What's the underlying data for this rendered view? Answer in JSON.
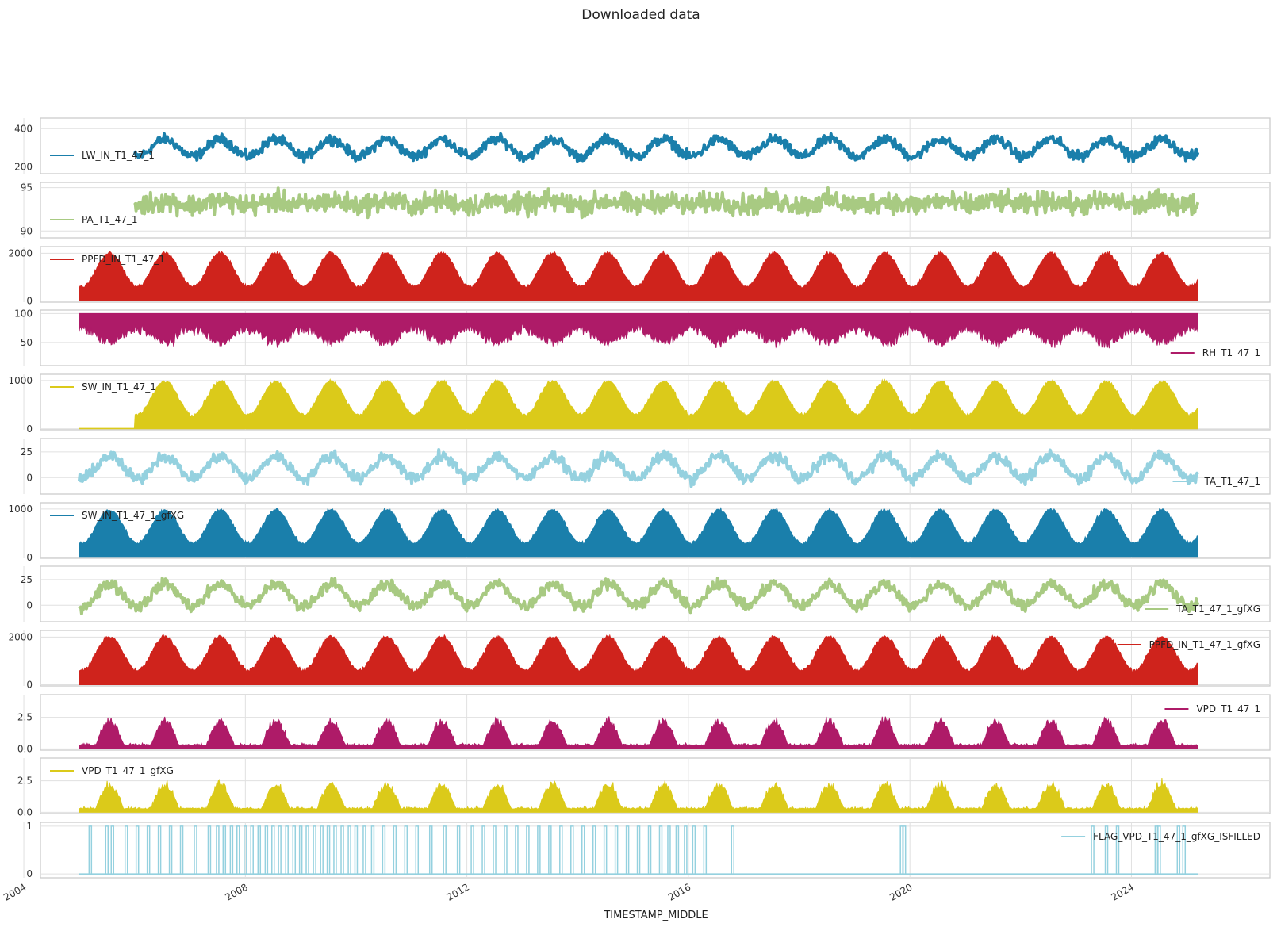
{
  "title": "Downloaded data",
  "chart_data": {
    "type": "line",
    "title": "Downloaded data",
    "xlabel": "TIMESTAMP_MIDDLE",
    "x_ticks": [
      "2004",
      "2008",
      "2012",
      "2016",
      "2020",
      "2024"
    ],
    "x_range": [
      2004.3,
      2026.5
    ],
    "grid": true,
    "panels": [
      {
        "series": "LW_IN_T1_47_1",
        "color": "#1a7fab",
        "start": 2006.0,
        "end": 2025.2,
        "ylim": [
          165,
          455
        ],
        "yticks": [
          200,
          400
        ],
        "mean": 300,
        "amp": 45,
        "noise": 38,
        "legend": "center-left",
        "kind": "line"
      },
      {
        "series": "PA_T1_47_1",
        "color": "#a8ca82",
        "start": 2006.0,
        "end": 2025.2,
        "ylim": [
          89.2,
          95.6
        ],
        "yticks": [
          90,
          95
        ],
        "mean": 93.2,
        "amp": 0.25,
        "noise": 1.8,
        "legend": "center-left",
        "kind": "line"
      },
      {
        "series": "PPFD_IN_T1_47_1",
        "color": "#cf231c",
        "start": 2005.0,
        "end": 2025.2,
        "ylim": [
          -50,
          2280
        ],
        "yticks": [
          0,
          2000
        ],
        "min": 0,
        "max": 2150,
        "legend": "upper-left",
        "kind": "season"
      },
      {
        "series": "RH_T1_47_1",
        "color": "#ae1b68",
        "start": 2005.0,
        "end": 2025.2,
        "ylim": [
          10,
          106
        ],
        "yticks": [
          50,
          100
        ],
        "legend": "lower-right",
        "kind": "rh"
      },
      {
        "series": "SW_IN_T1_47_1",
        "color": "#dbca1a",
        "start": 2005.0,
        "end": 2025.2,
        "ylim": [
          -20,
          1130
        ],
        "yticks": [
          0,
          1000
        ],
        "min": 0,
        "max": 1050,
        "legend": "upper-left",
        "kind": "sw"
      },
      {
        "series": "TA_T1_47_1",
        "color": "#95d1df",
        "start": 2005.0,
        "end": 2025.2,
        "ylim": [
          -16,
          38
        ],
        "yticks": [
          0,
          25
        ],
        "mean": 10,
        "amp": 11,
        "noise": 8,
        "legend": "lower-right",
        "kind": "line"
      },
      {
        "series": "SW_IN_T1_47_1_gfXG",
        "color": "#1a7fab",
        "start": 2005.0,
        "end": 2025.2,
        "ylim": [
          -20,
          1130
        ],
        "yticks": [
          0,
          1000
        ],
        "min": 0,
        "max": 1050,
        "legend": "upper-left",
        "kind": "season"
      },
      {
        "series": "TA_T1_47_1_gfXG",
        "color": "#a8ca82",
        "start": 2005.0,
        "end": 2025.2,
        "ylim": [
          -16,
          38
        ],
        "yticks": [
          0,
          25
        ],
        "mean": 10,
        "amp": 11,
        "noise": 8,
        "legend": "lower-right",
        "kind": "line"
      },
      {
        "series": "PPFD_IN_T1_47_1_gfXG",
        "color": "#cf231c",
        "start": 2005.0,
        "end": 2025.2,
        "ylim": [
          -50,
          2280
        ],
        "yticks": [
          0,
          2000
        ],
        "min": 0,
        "max": 2150,
        "legend": "upper-right",
        "kind": "season"
      },
      {
        "series": "VPD_T1_47_1",
        "color": "#ae1b68",
        "start": 2005.0,
        "end": 2025.2,
        "ylim": [
          -0.1,
          4.3
        ],
        "yticks": [
          0.0,
          2.5
        ],
        "legend": "upper-right",
        "kind": "vpd"
      },
      {
        "series": "VPD_T1_47_1_gfXG",
        "color": "#dbca1a",
        "start": 2005.0,
        "end": 2025.2,
        "ylim": [
          -0.1,
          4.3
        ],
        "yticks": [
          0.0,
          2.5
        ],
        "legend": "upper-left",
        "kind": "vpd"
      },
      {
        "series": "FLAG_VPD_T1_47_1_gfXG_ISFILLED",
        "color": "#95d1df",
        "start": 2005.0,
        "end": 2025.2,
        "ylim": [
          -0.08,
          1.08
        ],
        "yticks": [
          0,
          1
        ],
        "legend": "upper-right",
        "kind": "flag"
      }
    ],
    "flag_events": [
      2005.2,
      2005.5,
      2005.6,
      2005.85,
      2006.05,
      2006.25,
      2006.45,
      2006.65,
      2006.85,
      2007.1,
      2007.35,
      2007.5,
      2007.62,
      2007.75,
      2007.87,
      2008.0,
      2008.12,
      2008.25,
      2008.38,
      2008.5,
      2008.62,
      2008.75,
      2008.88,
      2009.0,
      2009.12,
      2009.25,
      2009.38,
      2009.5,
      2009.62,
      2009.75,
      2009.88,
      2010.0,
      2010.15,
      2010.3,
      2010.5,
      2010.7,
      2010.9,
      2011.1,
      2011.35,
      2011.6,
      2011.85,
      2012.1,
      2012.3,
      2012.5,
      2012.7,
      2012.9,
      2013.1,
      2013.3,
      2013.5,
      2013.7,
      2013.9,
      2014.1,
      2014.3,
      2014.5,
      2014.7,
      2014.9,
      2015.1,
      2015.3,
      2015.5,
      2015.65,
      2015.8,
      2015.95,
      2016.1,
      2016.3,
      2016.8,
      2019.85,
      2019.9,
      2023.3,
      2023.55,
      2023.75,
      2024.45,
      2024.5,
      2024.85,
      2024.95
    ]
  }
}
